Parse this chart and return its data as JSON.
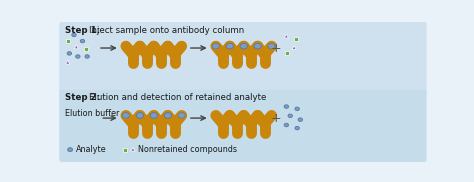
{
  "bg_color_top": "#cfe1ef",
  "bg_color_bot": "#c5dcea",
  "antibody_color": "#c8860a",
  "analyte_color": "#7b9cc4",
  "analyte_edge": "#5878a0",
  "square_color": "#6ab04c",
  "triangle_color": "#9070b8",
  "text_color": "#1a1a1a",
  "step1_title": "Step 1:  Inject sample onto antibody column",
  "step2_title": "Step 2:  Elution and detection of retained analyte",
  "legend_analyte": "Analyte",
  "legend_nonretained": "Nonretained compounds",
  "elution_label": "Elution buffer"
}
